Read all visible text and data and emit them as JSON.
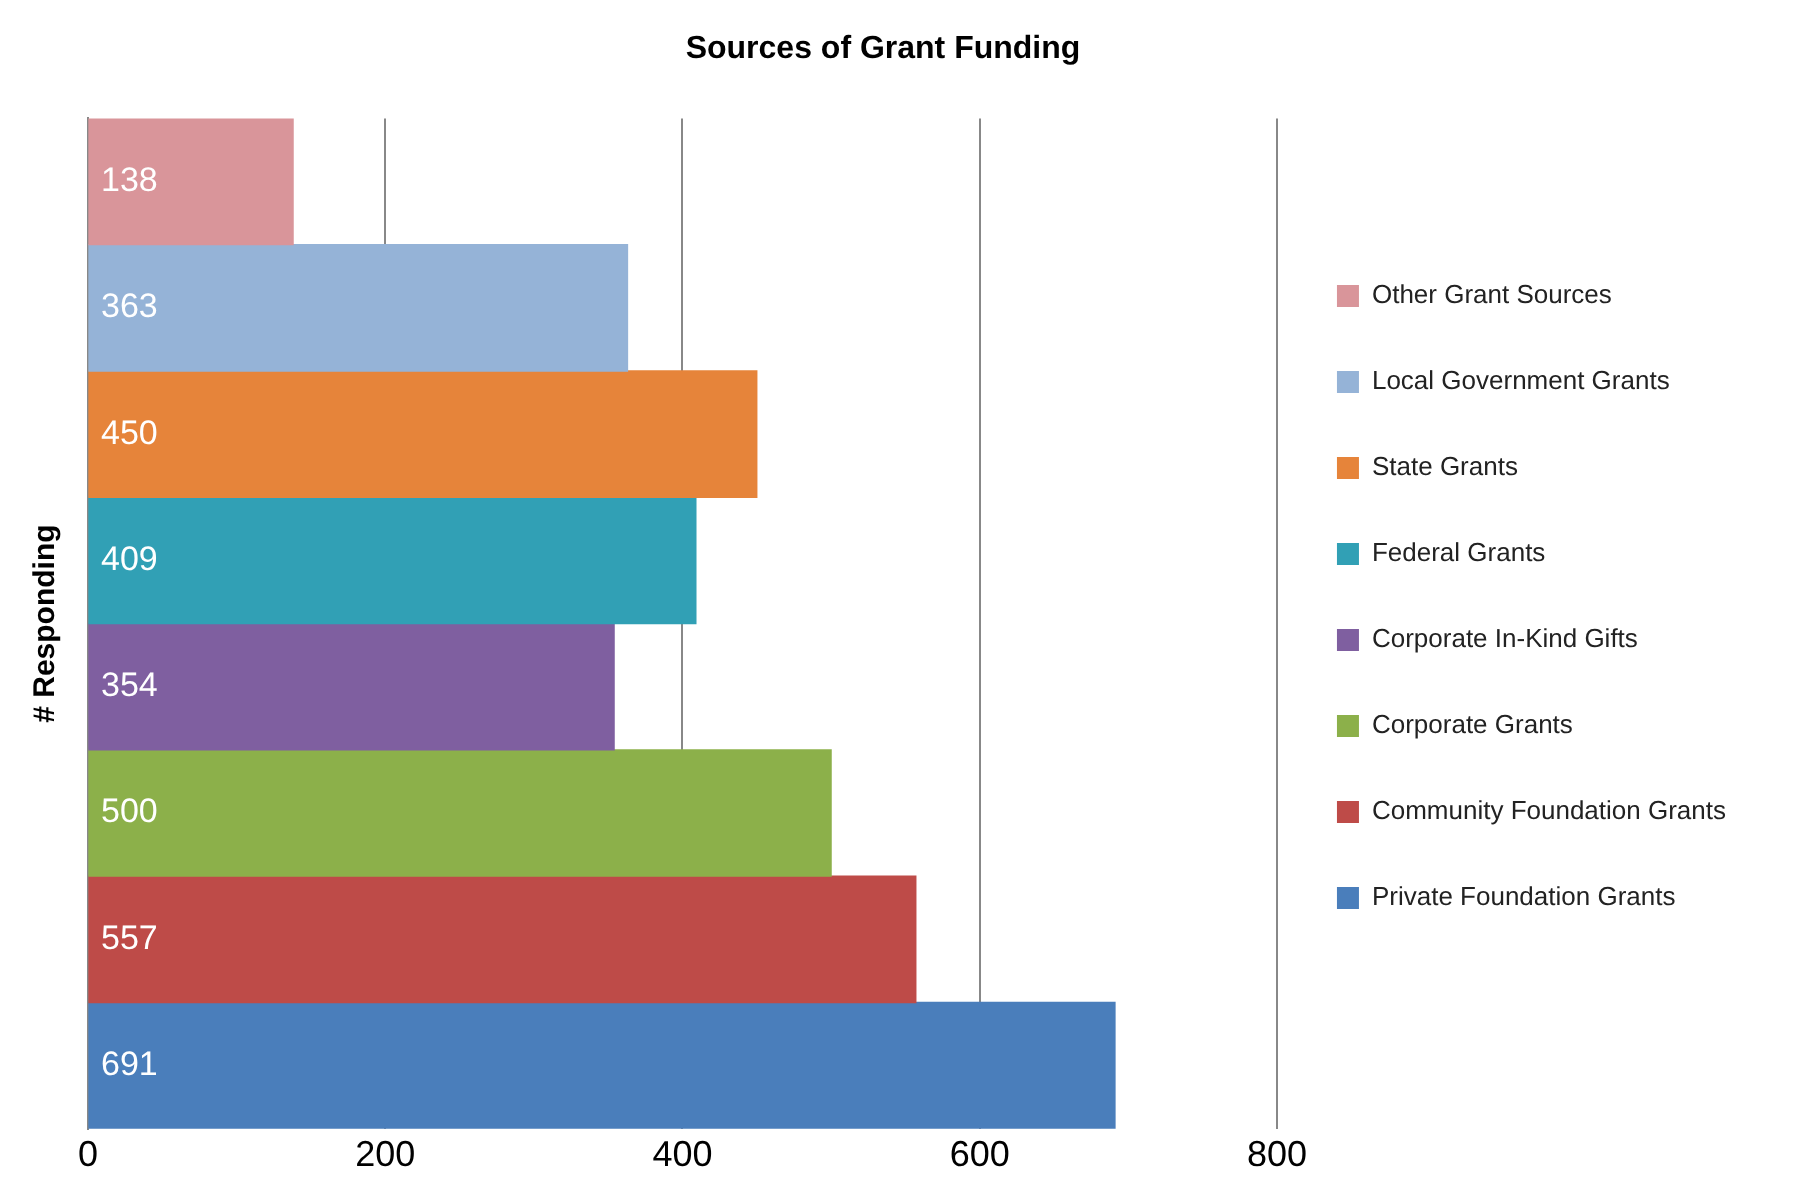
{
  "chart_data": {
    "type": "bar",
    "orientation": "horizontal",
    "title": "Sources of Grant Funding",
    "ylabel": "# Responding",
    "categories": [
      null,
      null,
      null,
      null,
      null,
      null,
      null,
      null
    ],
    "series": [
      {
        "name": "Other Grant Sources",
        "color": "#d9959a",
        "values": [
          138,
          null,
          null,
          null,
          null,
          null,
          null,
          null
        ]
      },
      {
        "name": "Local Government Grants",
        "color": "#95b3d7",
        "values": [
          null,
          363,
          null,
          null,
          null,
          null,
          null,
          null
        ]
      },
      {
        "name": "State Grants",
        "color": "#e6843a",
        "values": [
          null,
          null,
          450,
          null,
          null,
          null,
          null,
          null
        ]
      },
      {
        "name": "Federal Grants",
        "color": "#31a0b5",
        "values": [
          null,
          null,
          null,
          409,
          null,
          null,
          null,
          null
        ]
      },
      {
        "name": "Corporate In-Kind Gifts",
        "color": "#7f5fa0",
        "values": [
          null,
          null,
          null,
          null,
          354,
          null,
          null,
          null
        ]
      },
      {
        "name": "Corporate Grants",
        "color": "#8cb04a",
        "values": [
          null,
          null,
          null,
          null,
          null,
          500,
          null,
          null
        ]
      },
      {
        "name": "Community Foundation Grants",
        "color": "#be4b48",
        "values": [
          null,
          null,
          null,
          null,
          null,
          null,
          557,
          null
        ]
      },
      {
        "name": "Private Foundation Grants",
        "color": "#4a7ebb",
        "values": [
          null,
          null,
          null,
          null,
          null,
          null,
          null,
          691
        ]
      }
    ],
    "xlim": [
      0,
      800
    ],
    "xticks": [
      0,
      200,
      400,
      600,
      800
    ],
    "grid": "x",
    "legend": "right",
    "tick_labels": "x",
    "data_labels": true
  }
}
